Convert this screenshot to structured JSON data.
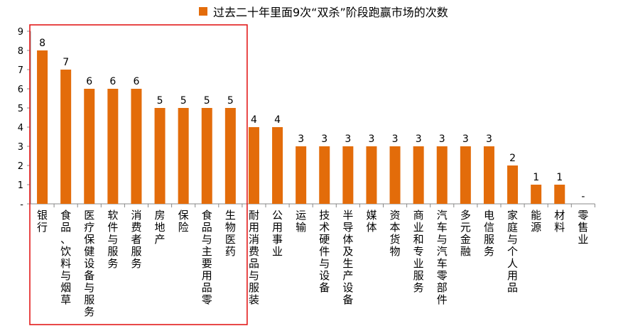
{
  "chart_data": {
    "type": "bar",
    "legend": "过去二十年里面9次“双杀”阶段跑赢市场的次数",
    "categories": [
      "银行",
      "食品、饮料与烟草",
      "医疗保健设备与服务",
      "软件与服务",
      "消费者服务",
      "房地产",
      "保险",
      "食品与主要用品零",
      "生物医药",
      "耐用消费品与服装",
      "公用事业",
      "运输",
      "技术硬件与设备",
      "半导体及生产设备",
      "媒体",
      "资本货物",
      "商业和专业服务",
      "汽车与汽车零部件",
      "多元金融",
      "电信服务",
      "家庭与个人用品",
      "能源",
      "材料",
      "零售业"
    ],
    "values": [
      8,
      7,
      6,
      6,
      6,
      5,
      5,
      5,
      5,
      4,
      4,
      3,
      3,
      3,
      3,
      3,
      3,
      3,
      3,
      3,
      2,
      1,
      1,
      0
    ],
    "data_labels": [
      "8",
      "7",
      "6",
      "6",
      "6",
      "5",
      "5",
      "5",
      "5",
      "4",
      "4",
      "3",
      "3",
      "3",
      "3",
      "3",
      "3",
      "3",
      "3",
      "3",
      "2",
      "1",
      "1",
      "-"
    ],
    "y_ticks": [
      "-",
      "1",
      "2",
      "3",
      "4",
      "5",
      "6",
      "7",
      "8",
      "9"
    ],
    "ylim": [
      0,
      9
    ],
    "grid": false,
    "legend_position": "top",
    "bar_color": "#E36C0A",
    "highlight_color": "#E31B1B"
  }
}
